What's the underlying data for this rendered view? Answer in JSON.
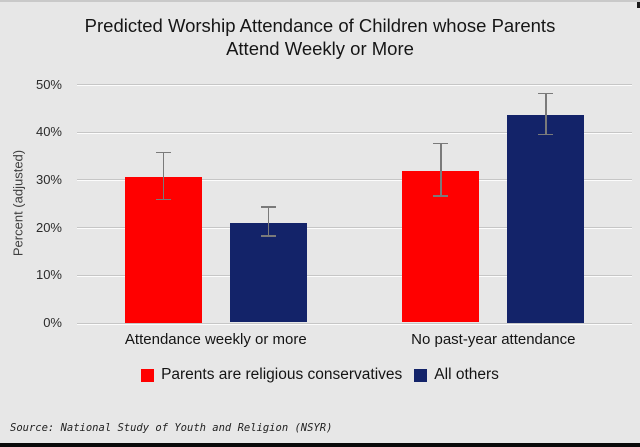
{
  "window": {
    "background_color": "#e7e7e7",
    "top_edge_color": "#c9c9c9",
    "bottom_bar_color": "#0a0a0a"
  },
  "chart_data": {
    "type": "bar",
    "title": "Predicted Worship Attendance of Children whose Parents Attend Weekly or More",
    "ylabel": "Percent (adjusted)",
    "xlabel": "",
    "ylim": [
      0,
      50
    ],
    "ytick_step": 10,
    "ytick_labels": [
      "0%",
      "10%",
      "20%",
      "30%",
      "40%",
      "50%"
    ],
    "grid": true,
    "legend_position": "bottom",
    "categories": [
      "Attendance weekly or more",
      "No past-year attendance"
    ],
    "series": [
      {
        "name": "Parents are religious conservatives",
        "color": "#ff0000",
        "values": [
          30.5,
          31.8
        ],
        "ci_low": [
          25.8,
          26.5
        ],
        "ci_high": [
          35.7,
          37.5
        ]
      },
      {
        "name": "All others",
        "color": "#132369",
        "values": [
          20.9,
          43.5
        ],
        "ci_low": [
          18.1,
          39.4
        ],
        "ci_high": [
          24.2,
          48.0
        ]
      }
    ],
    "error_bar_color": "#7a7a7a",
    "source_note": "Source: National Study of Youth and Religion (NSYR)"
  }
}
